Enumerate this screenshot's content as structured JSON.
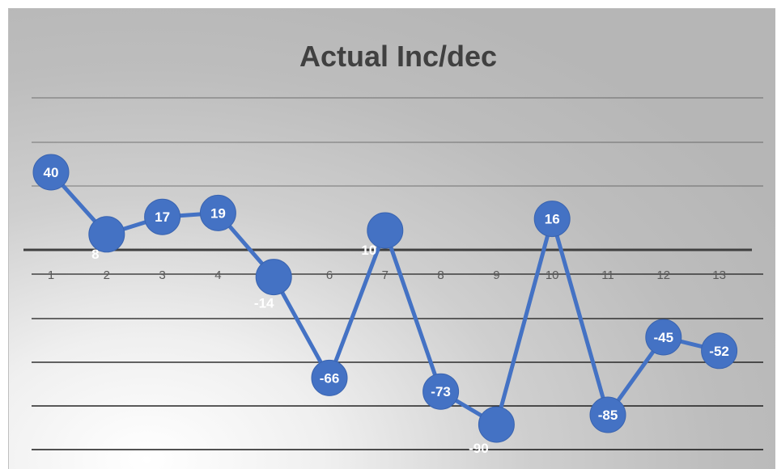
{
  "chart_data": {
    "type": "line",
    "title": "Actual Inc/dec",
    "xlabel": "",
    "ylabel": "",
    "categories": [
      "1",
      "2",
      "3",
      "4",
      "5",
      "6",
      "7",
      "8",
      "9",
      "10",
      "11",
      "12",
      "13"
    ],
    "series": [
      {
        "values": [
          40,
          8,
          17,
          19,
          -14,
          -66,
          10,
          -73,
          -90,
          16,
          -85,
          -45,
          -52
        ],
        "color": "#4472c4"
      }
    ],
    "marker": "circle",
    "data_labels": true,
    "label_color": "#ffffff",
    "axis_line_color": "#404040",
    "gridline_color": "#000000",
    "legend": "none",
    "grid": true
  }
}
